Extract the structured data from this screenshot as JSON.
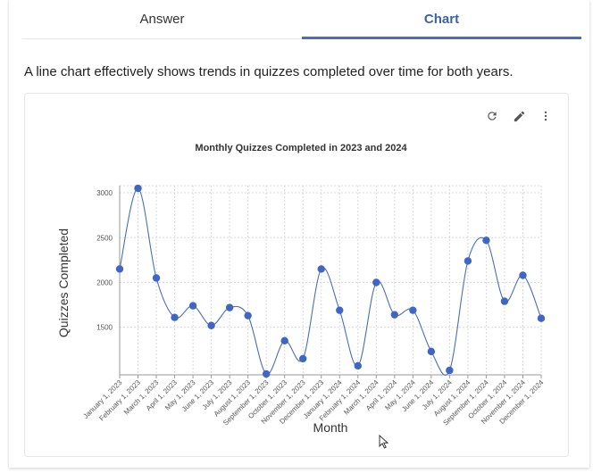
{
  "tabs": [
    {
      "label": "Answer",
      "active": false
    },
    {
      "label": "Chart",
      "active": true
    }
  ],
  "description": "A line chart effectively shows trends in quizzes completed over time for both years.",
  "toolbar": {
    "icons": [
      "refresh-icon",
      "edit-pencil-icon",
      "more-vertical-icon"
    ]
  },
  "colors": {
    "accent": "#4a6fb5",
    "series": "#3f66c4"
  },
  "chart_data": {
    "type": "line",
    "title": "Monthly Quizzes Completed in 2023 and 2024",
    "xlabel": "Month",
    "ylabel": "Quizzes Completed",
    "ylim": [
      970,
      3080
    ],
    "yticks": [
      1500,
      2000,
      2500,
      3000
    ],
    "grid": true,
    "smooth": true,
    "x": [
      "January 1, 2023",
      "February 1, 2023",
      "March 1, 2023",
      "April 1, 2023",
      "May 1, 2023",
      "June 1, 2023",
      "July 1, 2023",
      "August 1, 2023",
      "September 1, 2023",
      "October 1, 2023",
      "November 1, 2023",
      "December 1, 2023",
      "January 1, 2024",
      "February 1, 2024",
      "March 1, 2024",
      "April 1, 2024",
      "May 1, 2024",
      "June 1, 2024",
      "July 1, 2024",
      "August 1, 2024",
      "September 1, 2024",
      "October 1, 2024",
      "November 1, 2024",
      "December 1, 2024"
    ],
    "series": [
      {
        "values": [
          2150,
          3050,
          2050,
          1610,
          1740,
          1520,
          1720,
          1630,
          980,
          1350,
          1150,
          2150,
          1690,
          1070,
          2000,
          1640,
          1690,
          1230,
          1020,
          2240,
          2470,
          1790,
          2080,
          1600
        ]
      }
    ]
  }
}
